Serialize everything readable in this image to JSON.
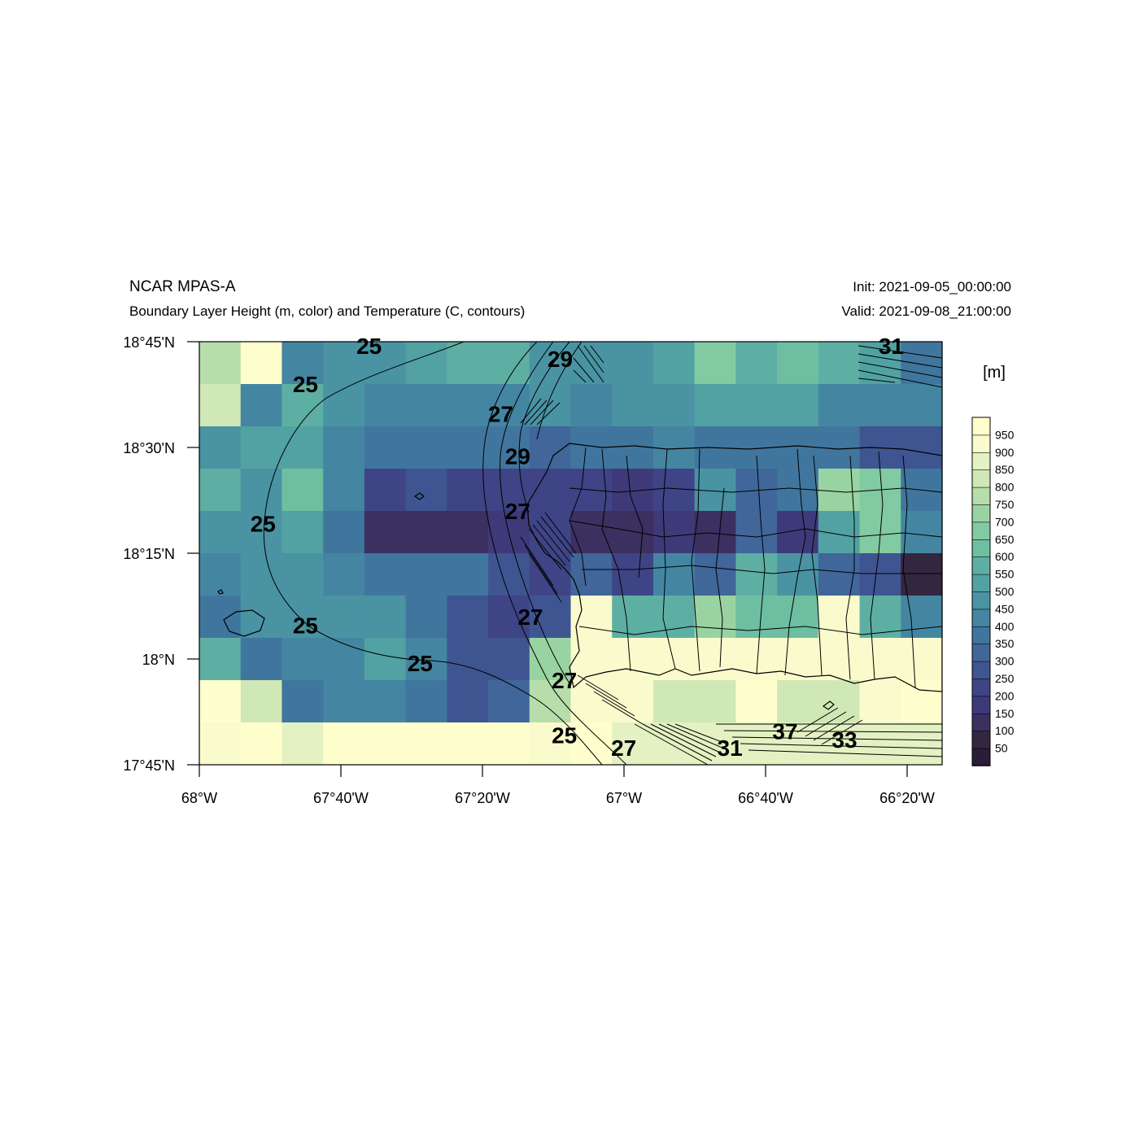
{
  "header": {
    "title_left": "NCAR MPAS-A",
    "subtitle_left": "Boundary Layer Height (m, color) and Temperature (C, contours)",
    "init": "Init: 2021-09-05_00:00:00",
    "valid": "Valid: 2021-09-08_21:00:00"
  },
  "colorbar": {
    "unit": "[m]",
    "levels": [
      "50",
      "100",
      "150",
      "200",
      "250",
      "300",
      "350",
      "400",
      "450",
      "500",
      "550",
      "600",
      "650",
      "700",
      "750",
      "800",
      "850",
      "900",
      "950"
    ],
    "colors": [
      "#2a1d38",
      "#33263f",
      "#3b3060",
      "#3e3a7a",
      "#3f4486",
      "#3f5592",
      "#40669a",
      "#40769e",
      "#4486a2",
      "#4a93a3",
      "#52a2a3",
      "#5eafa3",
      "#6ebea2",
      "#82caa1",
      "#9ad3a2",
      "#b6ddaa",
      "#cfe8b6",
      "#e4f1c2",
      "#fafbcc",
      "#ffffcd"
    ]
  },
  "axes": {
    "x_ticks": [
      "68°W",
      "67°40'W",
      "67°20'W",
      "67°W",
      "66°40'W",
      "66°20'W"
    ],
    "y_ticks": [
      "18°45'N",
      "18°30'N",
      "18°15'N",
      "18°N",
      "17°45'N"
    ]
  },
  "map_data": {
    "grid_columns": 18,
    "grid_rows": 10,
    "blh_grid": [
      [
        15,
        19,
        8,
        9,
        9,
        10,
        11,
        11,
        9,
        9,
        9,
        10,
        13,
        11,
        12,
        11,
        10,
        7
      ],
      [
        16,
        8,
        11,
        9,
        8,
        8,
        8,
        8,
        9,
        8,
        9,
        9,
        10,
        10,
        10,
        8,
        8,
        8
      ],
      [
        9,
        10,
        10,
        8,
        7,
        7,
        7,
        7,
        6,
        7,
        7,
        8,
        7,
        7,
        7,
        7,
        5,
        5
      ],
      [
        11,
        9,
        12,
        8,
        4,
        5,
        4,
        4,
        4,
        4,
        3,
        4,
        9,
        6,
        7,
        14,
        13,
        7
      ],
      [
        9,
        9,
        10,
        7,
        2,
        2,
        2,
        3,
        4,
        2,
        2,
        3,
        2,
        6,
        3,
        10,
        13,
        8
      ],
      [
        8,
        9,
        9,
        8,
        7,
        7,
        7,
        5,
        4,
        6,
        4,
        8,
        6,
        11,
        9,
        6,
        5,
        1
      ],
      [
        7,
        9,
        9,
        9,
        9,
        7,
        5,
        4,
        5,
        18,
        11,
        11,
        14,
        12,
        12,
        18,
        11,
        8
      ],
      [
        11,
        7,
        8,
        8,
        10,
        8,
        5,
        5,
        14,
        18,
        18,
        18,
        18,
        18,
        18,
        18,
        18,
        18
      ],
      [
        19,
        16,
        7,
        8,
        8,
        7,
        5,
        6,
        15,
        18,
        18,
        16,
        16,
        19,
        16,
        16,
        18,
        19
      ],
      [
        18,
        19,
        17,
        19,
        19,
        19,
        19,
        19,
        18,
        19,
        17,
        17,
        17,
        17,
        17,
        17,
        17,
        17
      ]
    ],
    "contour_labels": [
      {
        "text": "25",
        "lon": -67.6,
        "lat": 18.74
      },
      {
        "text": "25",
        "lon": -67.75,
        "lat": 18.65
      },
      {
        "text": "25",
        "lon": -67.85,
        "lat": 18.32
      },
      {
        "text": "25",
        "lon": -67.75,
        "lat": 18.08
      },
      {
        "text": "25",
        "lon": -67.48,
        "lat": 17.99
      },
      {
        "text": "25",
        "lon": -67.14,
        "lat": 17.82
      },
      {
        "text": "27",
        "lon": -67.29,
        "lat": 18.58
      },
      {
        "text": "27",
        "lon": -67.25,
        "lat": 18.35
      },
      {
        "text": "27",
        "lon": -67.22,
        "lat": 18.1
      },
      {
        "text": "27",
        "lon": -67.14,
        "lat": 17.95
      },
      {
        "text": "27",
        "lon": -67.0,
        "lat": 17.79
      },
      {
        "text": "29",
        "lon": -67.15,
        "lat": 18.71
      },
      {
        "text": "29",
        "lon": -67.25,
        "lat": 18.48
      },
      {
        "text": "31",
        "lon": -66.37,
        "lat": 18.74
      },
      {
        "text": "31",
        "lon": -66.75,
        "lat": 17.79
      },
      {
        "text": "37",
        "lon": -66.62,
        "lat": 17.83
      },
      {
        "text": "33",
        "lon": -66.48,
        "lat": 17.81
      }
    ]
  }
}
